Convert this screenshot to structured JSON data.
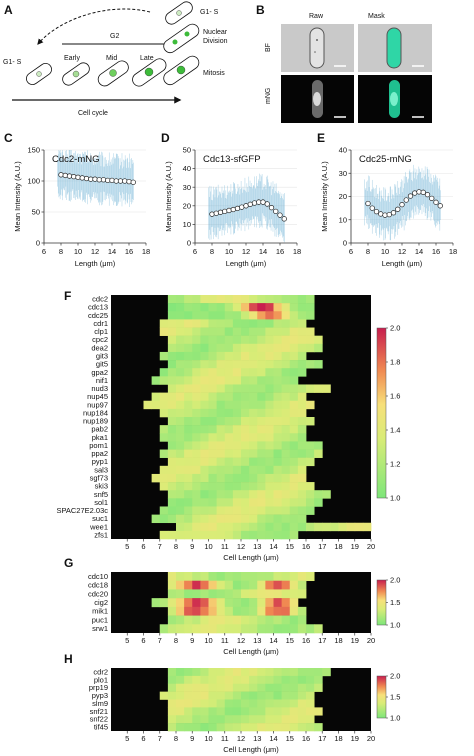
{
  "panels": {
    "A": {
      "label": "A",
      "stages_left": [
        "G1- S",
        "Early",
        "Mid",
        "Late"
      ],
      "stages_right": [
        "G1- S",
        "Nuclear\nDivision",
        "Mitosis"
      ],
      "g2_label": "G2",
      "axis_label": "Cell cycle"
    },
    "B": {
      "label": "B",
      "col_labels": [
        "Raw",
        "Mask"
      ],
      "row_labels": [
        "BF",
        "mNG"
      ]
    },
    "C": {
      "label": "C"
    },
    "D": {
      "label": "D"
    },
    "E": {
      "label": "E"
    },
    "F": {
      "label": "F"
    },
    "G": {
      "label": "G"
    },
    "H": {
      "label": "H"
    }
  },
  "chart_data": [
    {
      "type": "scatter",
      "title": "Cdc2-mNG",
      "xlabel": "Length (μm)",
      "ylabel": "Mean Intensity (A.U.)",
      "xlim": [
        6,
        18
      ],
      "ylim": [
        0,
        150
      ],
      "xticks": [
        6,
        8,
        10,
        12,
        14,
        16,
        18
      ],
      "yticks": [
        0,
        50,
        100,
        150
      ],
      "x": [
        8.0,
        8.5,
        9.0,
        9.5,
        10.0,
        10.5,
        11.0,
        11.5,
        12.0,
        12.5,
        13.0,
        13.5,
        14.0,
        14.5,
        15.0,
        15.5,
        16.0,
        16.5
      ],
      "y": [
        110,
        109,
        108,
        107,
        106,
        105,
        104,
        103,
        103,
        102,
        102,
        101,
        101,
        100,
        100,
        100,
        99,
        98
      ]
    },
    {
      "type": "scatter",
      "title": "Cdc13-sfGFP",
      "xlabel": "Length (μm)",
      "ylabel": "Mean Intensity (A.U.)",
      "xlim": [
        6,
        18
      ],
      "ylim": [
        0,
        50
      ],
      "xticks": [
        6,
        8,
        10,
        12,
        14,
        16,
        18
      ],
      "yticks": [
        0,
        10,
        20,
        30,
        40,
        50
      ],
      "x": [
        8.0,
        8.5,
        9.0,
        9.5,
        10.0,
        10.5,
        11.0,
        11.5,
        12.0,
        12.5,
        13.0,
        13.5,
        14.0,
        14.5,
        15.0,
        15.5,
        16.0,
        16.5
      ],
      "y": [
        15.5,
        16,
        16.5,
        17,
        17.5,
        18,
        18.6,
        19.3,
        20,
        20.8,
        21.5,
        22,
        22,
        21,
        19,
        17,
        15,
        13
      ]
    },
    {
      "type": "scatter",
      "title": "Cdc25-mNG",
      "xlabel": "Length (μm)",
      "ylabel": "Mean Intensity (A.U.)",
      "xlim": [
        6,
        18
      ],
      "ylim": [
        0,
        40
      ],
      "xticks": [
        6,
        8,
        10,
        12,
        14,
        16,
        18
      ],
      "yticks": [
        0,
        10,
        20,
        30,
        40
      ],
      "x": [
        8.0,
        8.5,
        9.0,
        9.5,
        10.0,
        10.5,
        11.0,
        11.5,
        12.0,
        12.5,
        13.0,
        13.5,
        14.0,
        14.5,
        15.0,
        15.5,
        16.0,
        16.5
      ],
      "y": [
        17,
        15,
        13.5,
        12.5,
        12,
        12.2,
        13,
        14.5,
        16.5,
        18.5,
        20.2,
        21.5,
        22,
        21.8,
        20.8,
        19.2,
        17.5,
        16
      ]
    },
    {
      "type": "heatmap",
      "xlabel": "Cell Length (μm)",
      "xlim": [
        4,
        20
      ],
      "xticks": [
        5,
        6,
        7,
        8,
        9,
        10,
        11,
        12,
        13,
        14,
        15,
        16,
        17,
        18,
        19,
        20
      ],
      "colorbar_ticks": [
        1.0,
        1.2,
        1.4,
        1.6,
        1.8,
        2.0
      ],
      "colorbar_range": [
        1.0,
        2.0
      ],
      "rows": [
        "cdc2",
        "cdc13",
        "cdc25",
        "cdr1",
        "clp1",
        "cpc2",
        "dea2",
        "git3",
        "git5",
        "gpa2",
        "nif1",
        "nud3",
        "nup45",
        "nup97",
        "nup184",
        "nup189",
        "pab2",
        "pka1",
        "pom1",
        "ppa2",
        "pyp1",
        "sal3",
        "sgf73",
        "ski3",
        "snf5",
        "sol1",
        "SPAC27E2.03c",
        "suc1",
        "wee1",
        "zfs1"
      ],
      "row_ranges": [
        [
          7.5,
          16.5
        ],
        [
          7.5,
          16.5
        ],
        [
          7.5,
          16.5
        ],
        [
          7,
          16
        ],
        [
          7,
          16.5
        ],
        [
          7.5,
          17
        ],
        [
          7.5,
          17
        ],
        [
          7,
          16
        ],
        [
          7.5,
          17
        ],
        [
          7,
          16
        ],
        [
          6.5,
          15.5
        ],
        [
          7.5,
          17.5
        ],
        [
          6.5,
          16
        ],
        [
          6,
          16.5
        ],
        [
          7,
          16
        ],
        [
          7.5,
          16.5
        ],
        [
          7,
          16
        ],
        [
          7,
          16
        ],
        [
          7.5,
          17
        ],
        [
          7,
          17
        ],
        [
          7.5,
          16.5
        ],
        [
          7,
          16
        ],
        [
          6.5,
          16
        ],
        [
          7,
          16.5
        ],
        [
          7.5,
          17.5
        ],
        [
          7.5,
          17
        ],
        [
          7,
          16.5
        ],
        [
          6.5,
          16
        ],
        [
          8,
          20
        ],
        [
          7,
          15.5
        ]
      ]
    },
    {
      "type": "heatmap",
      "xlabel": "Cell Length (μm)",
      "xlim": [
        4,
        20
      ],
      "xticks": [
        5,
        6,
        7,
        8,
        9,
        10,
        11,
        12,
        13,
        14,
        15,
        16,
        17,
        18,
        19,
        20
      ],
      "colorbar_ticks": [
        1.0,
        1.5,
        2.0
      ],
      "colorbar_range": [
        1.0,
        2.0
      ],
      "rows": [
        "cdc10",
        "cdc18",
        "cdc20",
        "cig2",
        "mik1",
        "puc1",
        "srw1"
      ],
      "row_ranges": [
        [
          7.5,
          16.5
        ],
        [
          7.5,
          16
        ],
        [
          7.5,
          16
        ],
        [
          6.5,
          15.5
        ],
        [
          7.5,
          16
        ],
        [
          7.5,
          16
        ],
        [
          7,
          17
        ]
      ]
    },
    {
      "type": "heatmap",
      "xlabel": "Cell Length (μm)",
      "xlim": [
        4,
        20
      ],
      "xticks": [
        5,
        6,
        7,
        8,
        9,
        10,
        11,
        12,
        13,
        14,
        15,
        16,
        17,
        18,
        19,
        20
      ],
      "colorbar_ticks": [
        1.0,
        1.5,
        2.0
      ],
      "colorbar_range": [
        1.0,
        2.0
      ],
      "rows": [
        "cdr2",
        "plo1",
        "prp19",
        "pyp3",
        "slm9",
        "snf21",
        "snf22",
        "tif45"
      ],
      "row_ranges": [
        [
          7.5,
          17.5
        ],
        [
          7.5,
          17
        ],
        [
          7.5,
          17
        ],
        [
          7,
          16.5
        ],
        [
          7.5,
          16.5
        ],
        [
          7.5,
          17
        ],
        [
          7.5,
          16.5
        ],
        [
          7.5,
          17
        ]
      ]
    }
  ]
}
